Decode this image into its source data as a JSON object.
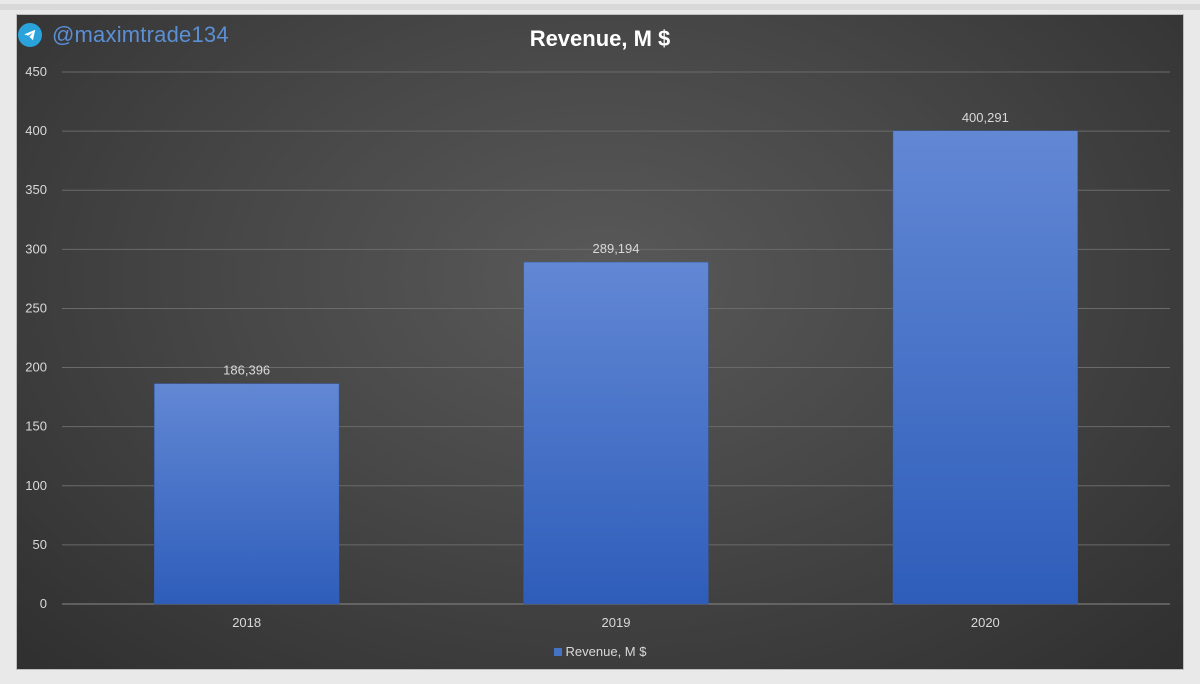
{
  "watermark": {
    "icon": "telegram-icon",
    "handle": "@maximtrade134"
  },
  "colors": {
    "bar_top": "#6288d4",
    "bar_bottom": "#2e5dba",
    "grid": "#6a6a6a",
    "text": "#d9d9d9",
    "title": "#ffffff",
    "watermark": "#5b8fd6"
  },
  "chart_data": {
    "type": "bar",
    "title": "Revenue, M $",
    "xlabel": "",
    "ylabel": "",
    "categories": [
      "2018",
      "2019",
      "2020"
    ],
    "series": [
      {
        "name": "Revenue, M $",
        "values": [
          186.396,
          289.194,
          400.291
        ],
        "labels": [
          "186,396",
          "289,194",
          "400,291"
        ]
      }
    ],
    "ylim": [
      0,
      450
    ],
    "yticks": [
      0,
      50,
      100,
      150,
      200,
      250,
      300,
      350,
      400,
      450
    ],
    "grid": true,
    "legend": "bottom"
  }
}
